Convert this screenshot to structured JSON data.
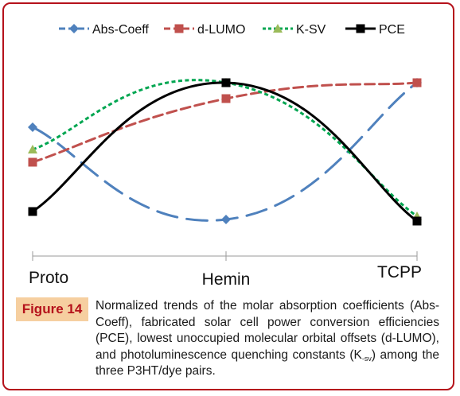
{
  "figure": {
    "label": "Figure 14",
    "caption_before": "Normalized trends of the molar absorption coefficients (Abs-Coeff), fabricated solar cell power conversion efficiencies (PCE), lowest unoccupied molecular orbital offsets (d-LUMO), and photoluminescence quenching constants (K",
    "caption_sub": "-sv",
    "caption_after": ") among the three P3HT/dye pairs."
  },
  "colors": {
    "abs_coeff": "#4f81bd",
    "d_lumo": "#c0504d",
    "k_sv": "#00a651",
    "k_sv_marker": "#9bbb59",
    "pce": "#000000",
    "frame": "#b5121b",
    "caption_box": "#f6cfa0"
  },
  "chart_data": {
    "type": "line",
    "smooth": true,
    "categories": [
      "Proto",
      "Hemin",
      "TCPP"
    ],
    "ylim": [
      0,
      1
    ],
    "grid": false,
    "legend_position": "top",
    "series": [
      {
        "name": "Abs-Coeff",
        "values": [
          0.7,
          0.12,
          0.98
        ],
        "color_key": "abs_coeff",
        "line": "long-dash",
        "marker": "diamond"
      },
      {
        "name": "d-LUMO",
        "values": [
          0.48,
          0.88,
          0.98
        ],
        "color_key": "d_lumo",
        "line": "dash",
        "marker": "square"
      },
      {
        "name": "K-SV",
        "values": [
          0.56,
          0.98,
          0.14
        ],
        "color_key": "k_sv",
        "line": "dot",
        "marker": "triangle"
      },
      {
        "name": "PCE",
        "values": [
          0.17,
          0.98,
          0.11
        ],
        "color_key": "pce",
        "line": "solid",
        "marker": "square"
      }
    ]
  }
}
